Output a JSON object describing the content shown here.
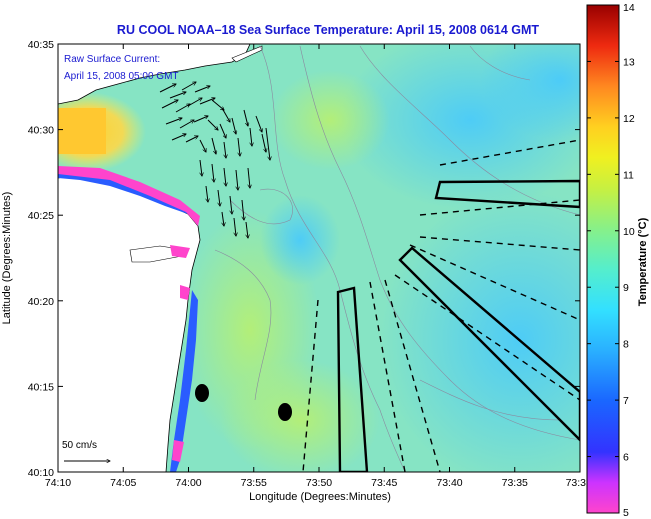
{
  "title": "RU COOL  NOAA–18  Sea Surface Temperature:  April 15, 2008 0614 GMT",
  "current_label": "Raw Surface Current:",
  "current_time": "April 15, 2008 05:00 GMT",
  "scale_label": "50 cm/s",
  "xlabel": "Longitude (Degrees:Minutes)",
  "ylabel": "Latitude (Degrees:Minutes)",
  "xticks": [
    "74:10",
    "74:05",
    "74:00",
    "73:55",
    "73:50",
    "73:45",
    "73:40",
    "73:35",
    "73:3"
  ],
  "yticks": [
    "40:35",
    "40:30",
    "40:25",
    "40:20",
    "40:15",
    "40:10"
  ],
  "colorbar": {
    "label": "Temperature (°C)",
    "ticks": [
      "14",
      "13",
      "12",
      "11",
      "10",
      "9",
      "8",
      "7",
      "6",
      "5"
    ],
    "min": 5,
    "max": 14
  },
  "colors": {
    "title": "#1a1ad0",
    "annotation": "#1a1ad0",
    "land": "#ffffff",
    "ocean_base": "#7fe0c8"
  }
}
